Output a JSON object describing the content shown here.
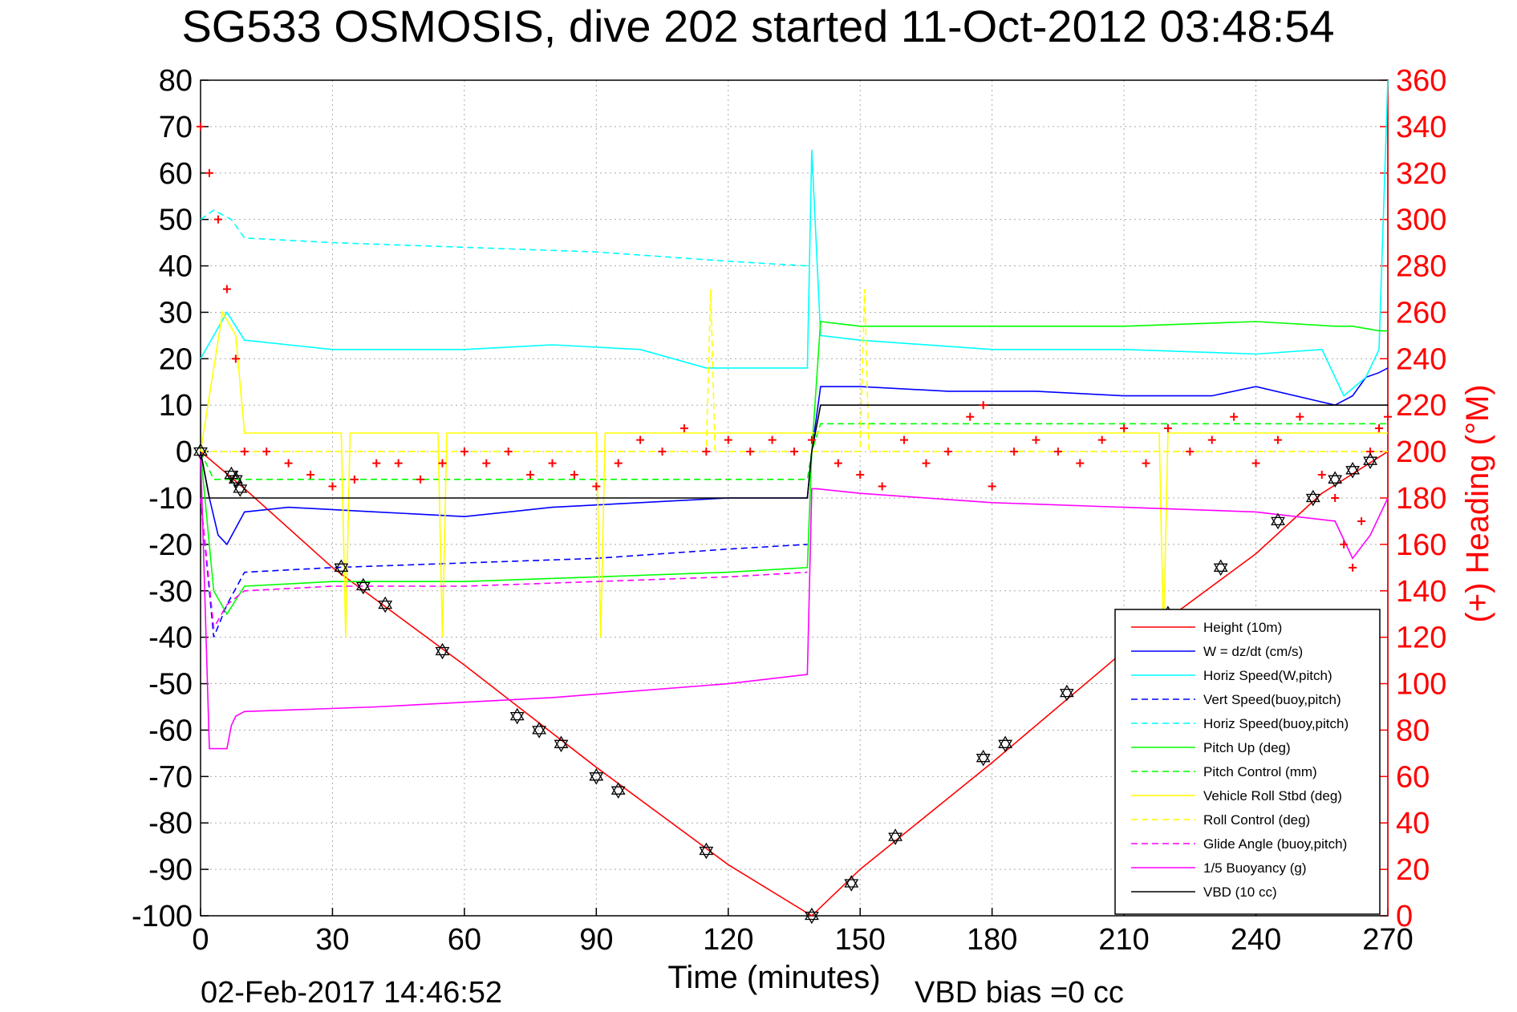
{
  "chart_data": {
    "type": "line",
    "title": "SG533 OSMOSIS, dive 202 started 11-Oct-2012 03:48:54",
    "xlabel": "Time (minutes)",
    "ylabel_right": "(+) Heading (°M)",
    "xlim": [
      0,
      270
    ],
    "ylim_left": [
      -100,
      80
    ],
    "ylim_right": [
      0,
      360
    ],
    "x_ticks": [
      "0",
      "30",
      "60",
      "90",
      "120",
      "150",
      "180",
      "210",
      "240",
      "270"
    ],
    "y_ticks_left": [
      "80",
      "70",
      "60",
      "50",
      "40",
      "30",
      "20",
      "10",
      "0",
      "-10",
      "-20",
      "-30",
      "-40",
      "-50",
      "-60",
      "-70",
      "-80",
      "-90",
      "-100"
    ],
    "y_ticks_right": [
      "360",
      "340",
      "320",
      "300",
      "280",
      "260",
      "240",
      "220",
      "200",
      "180",
      "160",
      "140",
      "120",
      "100",
      "80",
      "60",
      "40",
      "20",
      "0"
    ],
    "grid": true,
    "legend_position": "bottom-right",
    "footer_left": "02-Feb-2017 14:46:52",
    "footer_right": "VBD bias =0 cc",
    "series": [
      {
        "name": "Height (10m)",
        "color": "#ff0000",
        "style": "solid",
        "x": [
          0,
          10,
          30,
          60,
          90,
          120,
          139,
          150,
          180,
          210,
          240,
          255,
          270
        ],
        "y": [
          0,
          -8,
          -25,
          -46,
          -68,
          -89,
          -100,
          -90,
          -67,
          -43,
          -22,
          -9,
          0
        ]
      },
      {
        "name": "W = dz/dt (cm/s)",
        "color": "#0000ff",
        "style": "solid",
        "x": [
          0,
          2,
          4,
          6,
          10,
          20,
          40,
          60,
          80,
          100,
          120,
          138,
          139,
          141,
          150,
          170,
          190,
          210,
          230,
          240,
          258,
          262,
          265,
          268,
          270
        ],
        "y": [
          0,
          -10,
          -18,
          -20,
          -13,
          -12,
          -13,
          -14,
          -12,
          -11,
          -10,
          -10,
          0,
          14,
          14,
          13,
          13,
          12,
          12,
          14,
          10,
          12,
          16,
          17,
          18
        ]
      },
      {
        "name": "Horiz Speed(W,pitch)",
        "color": "#00ffff",
        "style": "solid",
        "x": [
          0,
          3,
          6,
          10,
          30,
          60,
          80,
          100,
          115,
          138,
          139,
          141,
          150,
          180,
          210,
          240,
          255,
          260,
          265,
          268,
          270
        ],
        "y": [
          20,
          25,
          30,
          24,
          22,
          22,
          23,
          22,
          18,
          18,
          65,
          25,
          24,
          22,
          22,
          21,
          22,
          12,
          16,
          22,
          80
        ]
      },
      {
        "name": "Vert Speed(buoy,pitch)",
        "color": "#0000ff",
        "style": "dashed",
        "x": [
          0,
          3,
          6,
          10,
          30,
          60,
          90,
          120,
          138
        ],
        "y": [
          -10,
          -40,
          -33,
          -26,
          -25,
          -24,
          -23,
          -21,
          -20
        ]
      },
      {
        "name": "Horiz Speed(buoy,pitch)",
        "color": "#00ffff",
        "style": "dashed",
        "x": [
          0,
          3,
          7,
          10,
          30,
          60,
          90,
          120,
          138
        ],
        "y": [
          50,
          52,
          50,
          46,
          45,
          44,
          43,
          41,
          40
        ]
      },
      {
        "name": "Pitch Up (deg)",
        "color": "#00ff00",
        "style": "solid",
        "x": [
          0,
          3,
          6,
          10,
          30,
          60,
          90,
          120,
          138,
          139,
          141,
          150,
          180,
          210,
          240,
          258,
          262,
          268,
          270
        ],
        "y": [
          0,
          -30,
          -35,
          -29,
          -28,
          -28,
          -27,
          -26,
          -25,
          0,
          28,
          27,
          27,
          27,
          28,
          27,
          27,
          26,
          26
        ]
      },
      {
        "name": "Pitch Control (mm)",
        "color": "#00ff00",
        "style": "dashed",
        "x": [
          0,
          3,
          10,
          138,
          139,
          141,
          270
        ],
        "y": [
          0,
          -6,
          -6,
          -6,
          0,
          6,
          6
        ]
      },
      {
        "name": "Vehicle Roll Stbd (deg)",
        "color": "#ffff00",
        "style": "solid",
        "x": [
          0,
          5,
          8,
          10,
          32,
          33,
          34,
          54,
          55,
          56,
          90,
          91,
          92,
          138,
          139,
          218,
          219,
          220,
          270
        ],
        "y": [
          0,
          30,
          25,
          4,
          4,
          -40,
          4,
          4,
          -40,
          4,
          4,
          -40,
          4,
          4,
          4,
          4,
          -40,
          4,
          4
        ]
      },
      {
        "name": "Roll Control (deg)",
        "color": "#ffff00",
        "style": "dashed",
        "x": [
          0,
          10,
          115,
          116,
          117,
          138,
          150,
          151,
          152,
          270
        ],
        "y": [
          0,
          0,
          0,
          35,
          0,
          0,
          0,
          35,
          0,
          0
        ]
      },
      {
        "name": "Glide Angle (buoy,pitch)",
        "color": "#ff00ff",
        "style": "dashed",
        "x": [
          0,
          3,
          6,
          10,
          30,
          60,
          90,
          120,
          138
        ],
        "y": [
          -10,
          -38,
          -33,
          -30,
          -29,
          -29,
          -28,
          -27,
          -26
        ]
      },
      {
        "name": "1/5 Buoyancy (g)",
        "color": "#ff00ff",
        "style": "solid",
        "x": [
          0,
          2,
          6,
          7,
          8,
          10,
          40,
          80,
          120,
          138,
          139,
          140,
          150,
          180,
          210,
          240,
          258,
          262,
          266,
          270
        ],
        "y": [
          0,
          -64,
          -64,
          -59,
          -57,
          -56,
          -55,
          -53,
          -50,
          -48,
          -8,
          -8,
          -9,
          -11,
          -12,
          -13,
          -15,
          -23,
          -18,
          -10
        ]
      },
      {
        "name": "VBD (10 cc)",
        "color": "#000000",
        "style": "solid",
        "x": [
          0,
          2,
          3,
          138,
          139,
          141,
          270
        ],
        "y": [
          0,
          -10,
          -10,
          -10,
          0,
          10,
          10
        ]
      }
    ],
    "heading_series": {
      "name": "Heading",
      "color": "#ff0000",
      "marker": "+",
      "axis": "right",
      "x": [
        0,
        2,
        4,
        6,
        8,
        10,
        15,
        20,
        25,
        30,
        35,
        40,
        45,
        50,
        55,
        60,
        65,
        70,
        75,
        80,
        85,
        90,
        95,
        100,
        105,
        110,
        115,
        120,
        125,
        130,
        135,
        139,
        145,
        150,
        155,
        160,
        165,
        170,
        175,
        178,
        180,
        185,
        190,
        195,
        200,
        205,
        210,
        215,
        220,
        225,
        230,
        235,
        240,
        245,
        250,
        255,
        258,
        260,
        262,
        264,
        266,
        268,
        270
      ],
      "y": [
        340,
        320,
        300,
        270,
        240,
        200,
        200,
        195,
        190,
        185,
        188,
        195,
        195,
        188,
        195,
        200,
        195,
        200,
        190,
        195,
        190,
        185,
        195,
        205,
        200,
        210,
        200,
        205,
        200,
        205,
        200,
        205,
        195,
        190,
        185,
        205,
        195,
        200,
        215,
        220,
        185,
        200,
        205,
        200,
        195,
        205,
        210,
        195,
        210,
        200,
        205,
        215,
        195,
        205,
        215,
        190,
        180,
        160,
        150,
        170,
        200,
        210,
        215
      ]
    },
    "markers_series": {
      "name": "Height samples",
      "color": "#000000",
      "marker": "hexagram",
      "x": [
        0,
        7,
        8,
        9,
        32,
        37,
        42,
        55,
        72,
        77,
        82,
        90,
        95,
        115,
        139,
        148,
        158,
        178,
        183,
        197,
        220,
        232,
        245,
        253,
        258,
        262,
        266
      ],
      "y": [
        0,
        -5,
        -6,
        -8,
        -25,
        -29,
        -33,
        -43,
        -57,
        -60,
        -63,
        -70,
        -73,
        -86,
        -100,
        -93,
        -83,
        -66,
        -63,
        -52,
        -35,
        -25,
        -15,
        -10,
        -6,
        -4,
        -2
      ]
    }
  }
}
